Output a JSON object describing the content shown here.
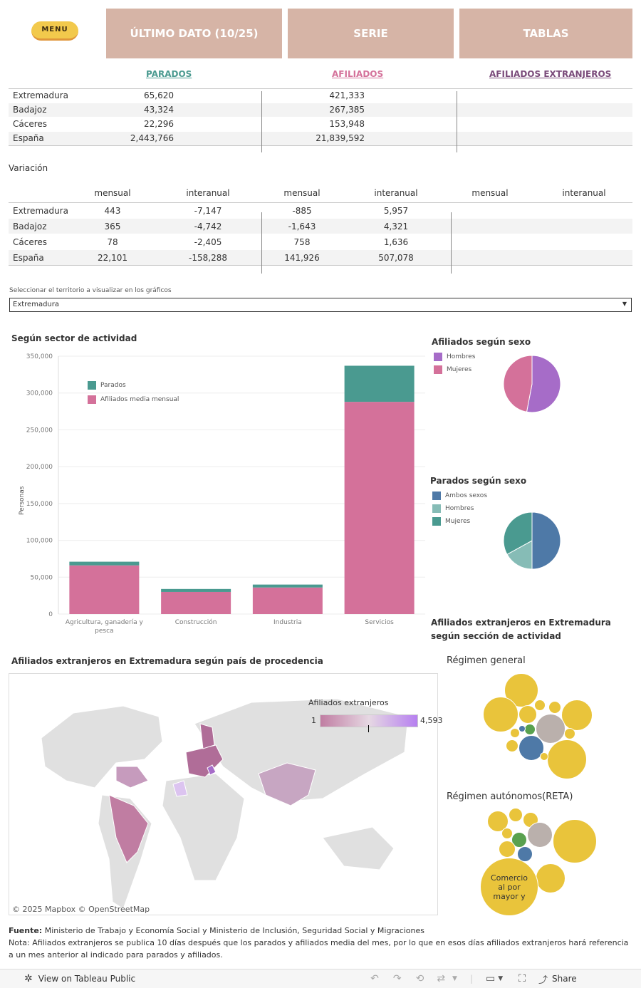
{
  "nav": {
    "menu_label": "MENU",
    "tabs": [
      "ÚLTIMO DATO (10/25)",
      "SERIE",
      "TABLAS"
    ]
  },
  "summary": {
    "headers": {
      "parados": "PARADOS",
      "afiliados": "AFILIADOS",
      "extranjeros": "AFILIADOS EXTRANJEROS"
    },
    "colors": {
      "parados": "#4a9a90",
      "afiliados": "#d4719a",
      "extranjeros": "#7a4a7a"
    },
    "rows": [
      {
        "territorio": "Extremadura",
        "parados": "65,620",
        "afiliados": "421,333"
      },
      {
        "territorio": "Badajoz",
        "parados": "43,324",
        "afiliados": "267,385"
      },
      {
        "territorio": "Cáceres",
        "parados": "22,296",
        "afiliados": "153,948"
      },
      {
        "territorio": "España",
        "parados": "2,443,766",
        "afiliados": "21,839,592"
      }
    ]
  },
  "variacion": {
    "title": "Variación",
    "col_headers": [
      "mensual",
      "interanual",
      "mensual",
      "interanual",
      "mensual",
      "interanual"
    ],
    "rows": [
      {
        "territorio": "Extremadura",
        "values": [
          "443",
          "-7,147",
          "-885",
          "5,957"
        ]
      },
      {
        "territorio": "Badajoz",
        "values": [
          "365",
          "-4,742",
          "-1,643",
          "4,321"
        ]
      },
      {
        "territorio": "Cáceres",
        "values": [
          "78",
          "-2,405",
          "758",
          "1,636"
        ]
      },
      {
        "territorio": "España",
        "values": [
          "22,101",
          "-158,288",
          "141,926",
          "507,078"
        ]
      }
    ]
  },
  "filter": {
    "label": "Seleccionar el territorio a visualizar en los gráficos",
    "value": "Extremadura"
  },
  "sector_chart": {
    "title": "Según sector de actividad",
    "ylabel": "Personas",
    "legend": [
      "Parados",
      "Afiliados media mensual"
    ],
    "colors": {
      "parados": "#4a9a90",
      "afiliados": "#d4719a"
    }
  },
  "chart_data": {
    "type": "bar",
    "title": "Según sector de actividad",
    "ylabel": "Personas",
    "ylim": [
      0,
      350000
    ],
    "yticks": [
      "0",
      "50,000",
      "100,000",
      "150,000",
      "200,000",
      "250,000",
      "300,000",
      "350,000"
    ],
    "yticks_values": [
      0,
      50000,
      100000,
      150000,
      200000,
      250000,
      300000,
      350000
    ],
    "categories": [
      "Agricultura, ganadería y pesca",
      "Construcción",
      "Industria",
      "Servicios"
    ],
    "series": [
      {
        "name": "Afiliados media mensual",
        "values": [
          66000,
          30000,
          36000,
          288000
        ]
      },
      {
        "name": "Parados",
        "values": [
          5000,
          4000,
          4000,
          49000
        ]
      }
    ]
  },
  "sexo_afiliados": {
    "title": "Afiliados según sexo",
    "legend": [
      "Hombres",
      "Mujeres"
    ],
    "colors": [
      "#a66cc8",
      "#d4719a"
    ],
    "shares": [
      0.53,
      0.47
    ]
  },
  "sexo_parados": {
    "title": "Parados según sexo",
    "legend": [
      "Ambos sexos",
      "Hombres",
      "Mujeres"
    ],
    "colors": [
      "#4e79a7",
      "#86bcb6",
      "#4a9a90"
    ],
    "shares": [
      0.5,
      0.17,
      0.33
    ]
  },
  "map": {
    "title": "Afiliados extranjeros en Extremadura según país de procedencia",
    "legend_title": "Afiliados extranjeros",
    "legend_min": "1",
    "legend_max": "4,593",
    "attribution": "© 2025 Mapbox  © OpenStreetMap"
  },
  "bubbles": {
    "title": "Afiliados extranjeros en Extremadura según sección de actividad",
    "general_title": "Régimen general",
    "reta_title": "Régimen autónomos(RETA)",
    "reta_label": "Comercio al por mayor y"
  },
  "fuente": {
    "label": "Fuente:",
    "text": "Ministerio de Trabajo y Economía Social y Ministerio de Inclusión, Seguridad Social y Migraciones",
    "nota": "Nota: Afiliados extranjeros se publica 10 días después que los parados y afiliados media del mes, por lo que en esos días afiliados extranjeros hará referencia a un mes anterior al indicado para parados y afiliados."
  },
  "toolbar": {
    "view_label": "View on Tableau Public",
    "share_label": "Share"
  }
}
